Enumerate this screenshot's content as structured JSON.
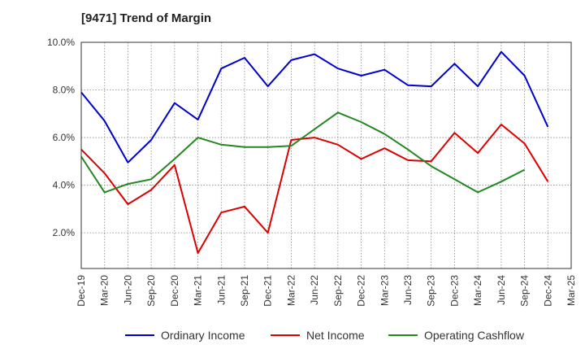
{
  "chart_data": {
    "type": "line",
    "title": "[9471]  Trend of Margin",
    "categories": [
      "Dec-19",
      "Mar-20",
      "Jun-20",
      "Sep-20",
      "Dec-20",
      "Mar-21",
      "Jun-21",
      "Sep-21",
      "Dec-21",
      "Mar-22",
      "Jun-22",
      "Sep-22",
      "Dec-22",
      "Mar-23",
      "Jun-23",
      "Sep-23",
      "Dec-23",
      "Mar-24",
      "Jun-24",
      "Sep-24",
      "Dec-24",
      "Mar-25"
    ],
    "xlabel": "",
    "ylabel": "",
    "ylim": [
      0.5,
      10.0
    ],
    "yticks": [
      "2.0%",
      "4.0%",
      "6.0%",
      "8.0%",
      "10.0%"
    ],
    "grid": true,
    "legend_position": "bottom",
    "series": [
      {
        "name": "Ordinary Income",
        "color": "#0000cc",
        "values": [
          7.9,
          6.7,
          4.95,
          5.9,
          7.45,
          6.75,
          8.9,
          9.35,
          8.15,
          9.25,
          9.5,
          8.9,
          8.6,
          8.85,
          8.2,
          8.15,
          9.1,
          8.15,
          9.6,
          8.6,
          6.45,
          null
        ]
      },
      {
        "name": "Net Income",
        "color": "#dd0000",
        "values": [
          5.5,
          4.5,
          3.2,
          3.8,
          4.85,
          1.15,
          2.85,
          3.1,
          2.0,
          5.9,
          6.0,
          5.7,
          5.1,
          5.55,
          5.05,
          5.0,
          6.2,
          5.35,
          6.55,
          5.75,
          4.15,
          null
        ]
      },
      {
        "name": "Operating Cashflow",
        "color": "#228822",
        "values": [
          5.2,
          3.7,
          4.05,
          4.25,
          5.1,
          6.0,
          5.7,
          5.6,
          5.6,
          5.65,
          6.35,
          7.05,
          6.65,
          6.15,
          5.5,
          4.8,
          4.25,
          3.7,
          4.15,
          4.65,
          null,
          null
        ]
      }
    ]
  }
}
